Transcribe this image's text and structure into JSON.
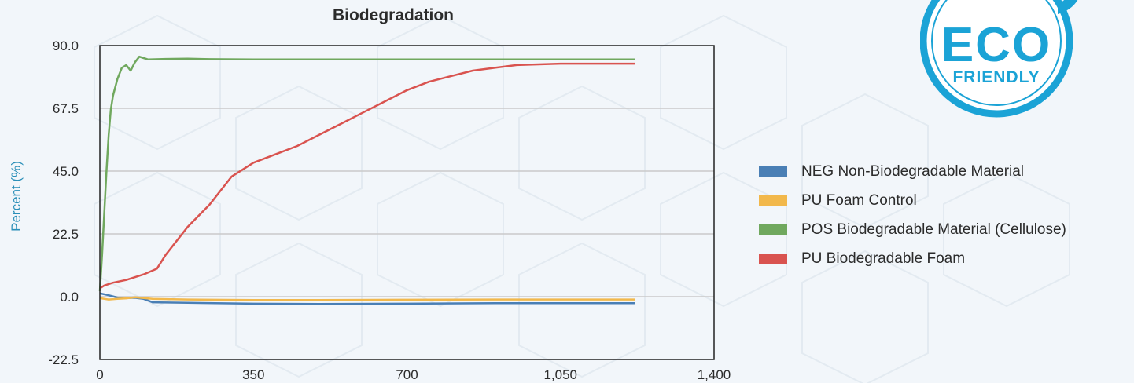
{
  "chart_data": {
    "type": "line",
    "title": "Biodegradation",
    "xlabel": "",
    "ylabel": "Percent (%)",
    "xlim": [
      0,
      1400
    ],
    "ylim": [
      -22.5,
      90
    ],
    "x_ticks": [
      "0",
      "350",
      "700",
      "1,050",
      "1,400"
    ],
    "y_ticks": [
      "90.0",
      "67.5",
      "45.0",
      "22.5",
      "0.0",
      "-22.5"
    ],
    "grid": "horizontal",
    "legend_position": "right",
    "series": [
      {
        "name": "NEG Non-Biodegradable Material",
        "color": "#4a7fb5",
        "x": [
          0,
          20,
          40,
          60,
          80,
          100,
          120,
          200,
          350,
          500,
          700,
          900,
          1050,
          1220
        ],
        "y": [
          1.2,
          0.5,
          -0.3,
          -0.5,
          -0.4,
          -0.8,
          -2.0,
          -2.2,
          -2.5,
          -2.6,
          -2.5,
          -2.3,
          -2.3,
          -2.3
        ]
      },
      {
        "name": "PU Foam Control",
        "color": "#f2b84b",
        "x": [
          0,
          20,
          40,
          60,
          80,
          100,
          120,
          200,
          350,
          500,
          700,
          900,
          1050,
          1220
        ],
        "y": [
          -0.5,
          -1.0,
          -0.8,
          -0.6,
          -0.2,
          -0.5,
          -0.8,
          -1.0,
          -1.2,
          -1.2,
          -1.1,
          -1.0,
          -1.0,
          -1.0
        ]
      },
      {
        "name": "POS Biodegradable Material (Cellulose)",
        "color": "#70a85e",
        "x": [
          0,
          5,
          10,
          15,
          20,
          25,
          30,
          40,
          50,
          60,
          70,
          80,
          90,
          100,
          110,
          150,
          200,
          250,
          350,
          500,
          700,
          900,
          1050,
          1220
        ],
        "y": [
          2,
          15,
          30,
          45,
          58,
          67,
          72,
          78,
          82,
          83,
          81,
          84,
          86,
          85.5,
          85,
          85.2,
          85.3,
          85.1,
          85.0,
          85.0,
          85.0,
          85.0,
          85.0,
          85.0
        ]
      },
      {
        "name": "PU Biodegradable Foam",
        "color": "#d9534f",
        "x": [
          0,
          10,
          30,
          60,
          100,
          130,
          150,
          200,
          250,
          300,
          350,
          400,
          450,
          500,
          550,
          600,
          650,
          700,
          750,
          800,
          850,
          900,
          950,
          1050,
          1220
        ],
        "y": [
          3,
          4,
          5,
          6,
          8,
          10,
          15,
          25,
          33,
          43,
          48,
          51,
          54,
          58,
          62,
          66,
          70,
          74,
          77,
          79,
          81,
          82,
          83,
          83.5,
          83.5
        ]
      }
    ]
  },
  "badge": {
    "line1": "ECO",
    "line2": "FRIENDLY",
    "color": "#1ba3d6"
  }
}
